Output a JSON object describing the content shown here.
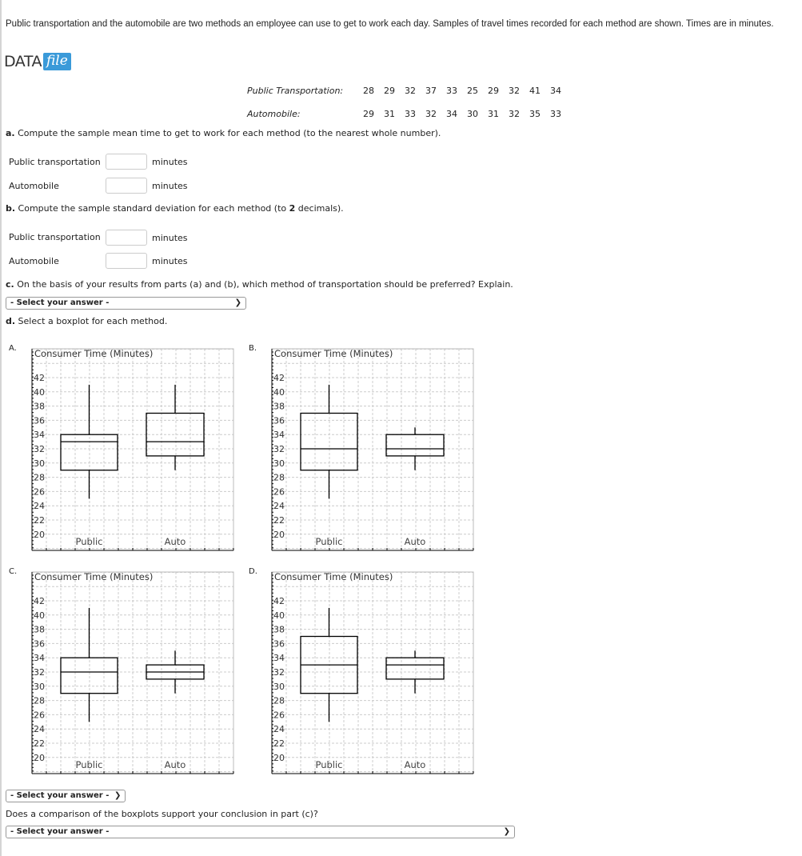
{
  "intro": "Public transportation and the automobile are two methods an employee can use to get to work each day. Samples of travel times recorded for each method are shown. Times are in minutes.",
  "logo": {
    "word": "DATA",
    "file": "file"
  },
  "data_table": {
    "public_label": "Public Transportation:",
    "public_values": [
      "28",
      "29",
      "32",
      "37",
      "33",
      "25",
      "29",
      "32",
      "41",
      "34"
    ],
    "auto_label": "Automobile:",
    "auto_values": [
      "29",
      "31",
      "33",
      "32",
      "34",
      "30",
      "31",
      "32",
      "35",
      "33"
    ]
  },
  "part_a": {
    "letter": "a.",
    "text": " Compute the sample mean time to get to work for each method (to the nearest whole number).",
    "public_label": "Public transportation",
    "auto_label": "Automobile",
    "unit": "minutes",
    "public_value": "",
    "auto_value": ""
  },
  "part_b": {
    "letter": "b.",
    "text": " Compute the sample standard deviation for each method (to ",
    "decimals": "2",
    "text_end": " decimals).",
    "public_label": "Public transportation",
    "auto_label": "Automobile",
    "unit": "minutes",
    "public_value": "",
    "auto_value": ""
  },
  "part_c": {
    "letter": "c.",
    "text": " On the basis of your results from parts (a) and (b), which method of transportation should be preferred? Explain.",
    "select": "- Select your answer -"
  },
  "part_d": {
    "letter": "d.",
    "text": " Select a boxplot for each method.",
    "select": "- Select your answer -",
    "question": "Does a comparison of the boxplots support your conclusion in part (c)?",
    "select2": "- Select your answer -"
  },
  "chart_data": [
    {
      "option": "A.",
      "type": "boxplot",
      "title": "Consumer Time (Minutes)",
      "categories": [
        "Public",
        "Auto"
      ],
      "yticks": [
        "20",
        "22",
        "24",
        "26",
        "28",
        "30",
        "32",
        "34",
        "36",
        "38",
        "40",
        "42"
      ],
      "ylim": [
        20,
        42
      ],
      "grid": true,
      "series": [
        {
          "name": "Public",
          "min": 25,
          "q1": 29,
          "median": 33,
          "q3": 34,
          "max": 41
        },
        {
          "name": "Auto",
          "min": 29,
          "q1": 31,
          "median": 33,
          "q3": 37,
          "max": 41
        }
      ]
    },
    {
      "option": "B.",
      "type": "boxplot",
      "title": "Consumer Time (Minutes)",
      "categories": [
        "Public",
        "Auto"
      ],
      "yticks": [
        "20",
        "22",
        "24",
        "26",
        "28",
        "30",
        "32",
        "34",
        "36",
        "38",
        "40",
        "42"
      ],
      "ylim": [
        20,
        42
      ],
      "grid": true,
      "series": [
        {
          "name": "Public",
          "min": 25,
          "q1": 29,
          "median": 32,
          "q3": 37,
          "max": 41
        },
        {
          "name": "Auto",
          "min": 29,
          "q1": 31,
          "median": 32,
          "q3": 34,
          "max": 35
        }
      ]
    },
    {
      "option": "C.",
      "type": "boxplot",
      "title": "Consumer Time (Minutes)",
      "categories": [
        "Public",
        "Auto"
      ],
      "yticks": [
        "20",
        "22",
        "24",
        "26",
        "28",
        "30",
        "32",
        "34",
        "36",
        "38",
        "40",
        "42"
      ],
      "ylim": [
        20,
        42
      ],
      "grid": true,
      "series": [
        {
          "name": "Public",
          "min": 25,
          "q1": 29,
          "median": 32,
          "q3": 34,
          "max": 41
        },
        {
          "name": "Auto",
          "min": 29,
          "q1": 31,
          "median": 32,
          "q3": 33,
          "max": 35
        }
      ]
    },
    {
      "option": "D.",
      "type": "boxplot",
      "title": "Consumer Time (Minutes)",
      "categories": [
        "Public",
        "Auto"
      ],
      "yticks": [
        "20",
        "22",
        "24",
        "26",
        "28",
        "30",
        "32",
        "34",
        "36",
        "38",
        "40",
        "42"
      ],
      "ylim": [
        20,
        42
      ],
      "grid": true,
      "series": [
        {
          "name": "Public",
          "min": 25,
          "q1": 29,
          "median": 33,
          "q3": 37,
          "max": 41
        },
        {
          "name": "Auto",
          "min": 29,
          "q1": 31,
          "median": 33,
          "q3": 34,
          "max": 35
        }
      ]
    }
  ]
}
